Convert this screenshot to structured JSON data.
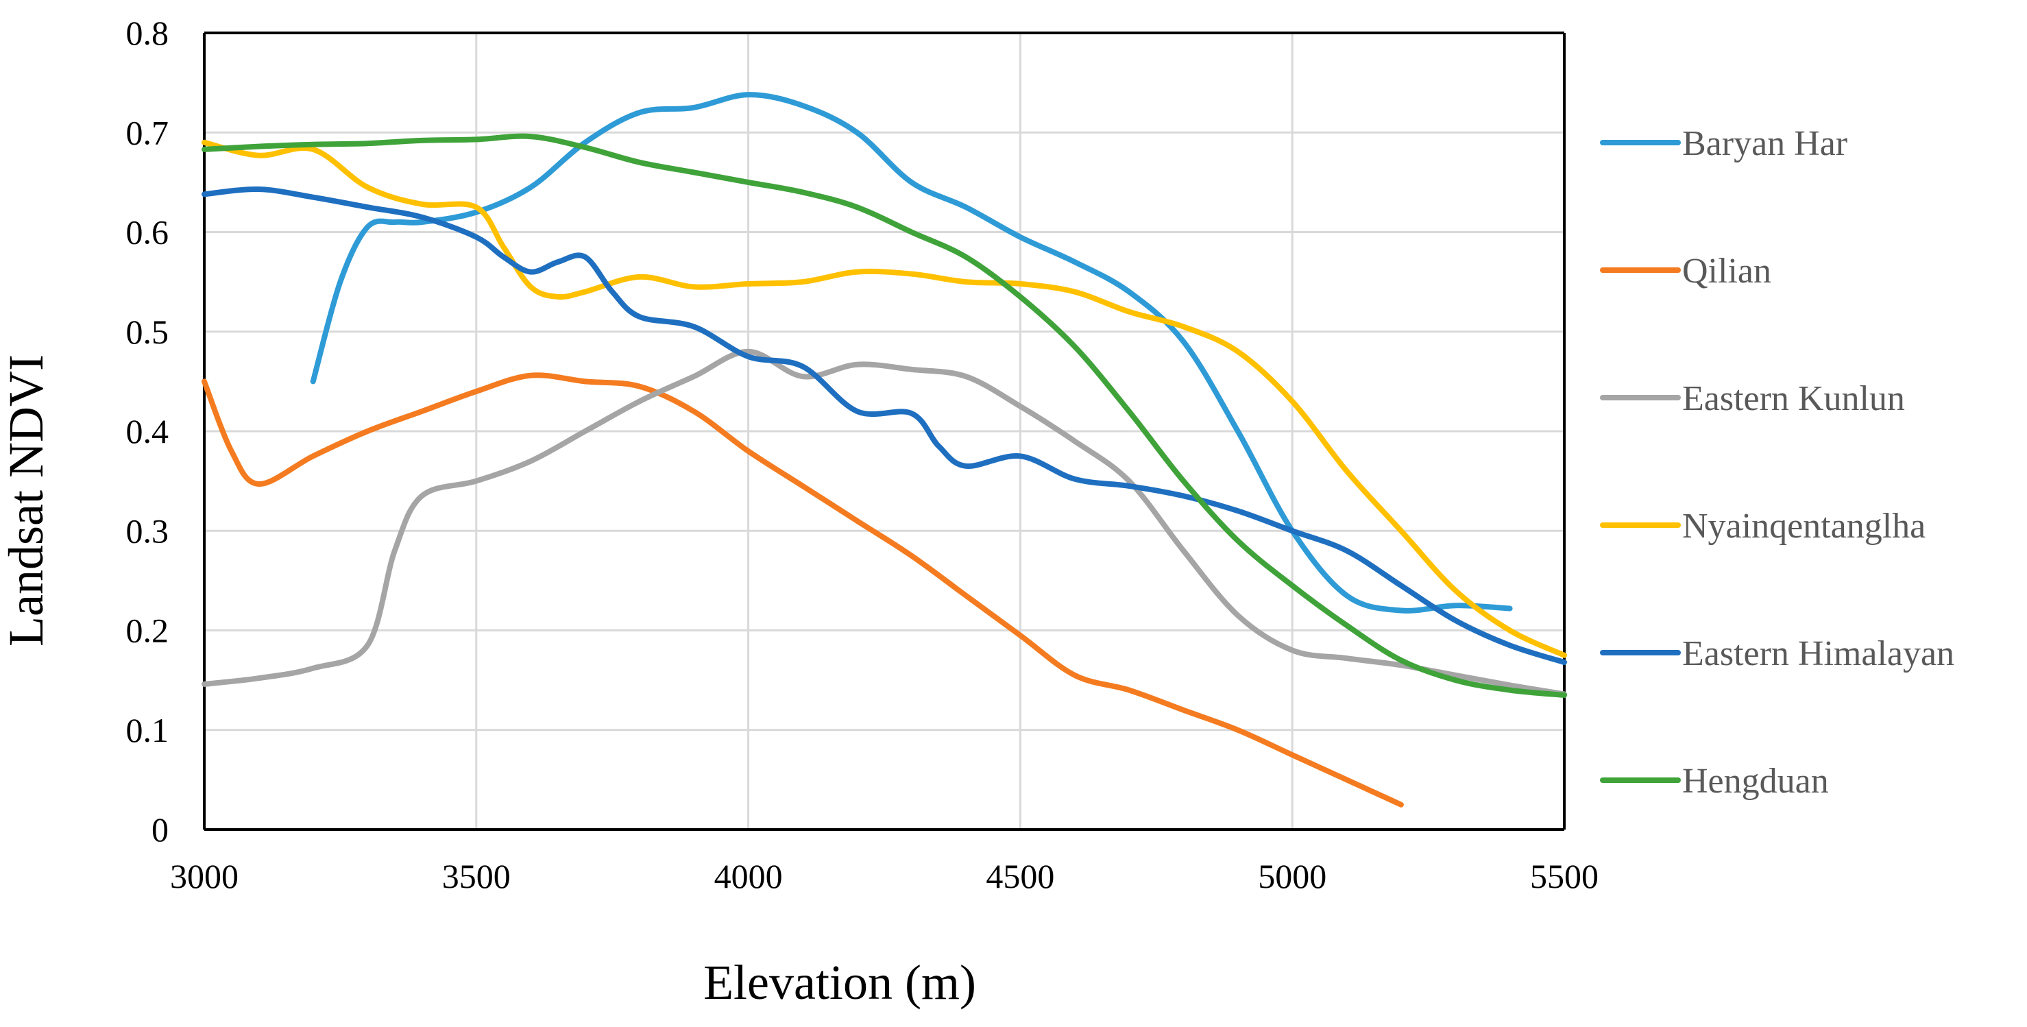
{
  "chart_data": {
    "type": "line",
    "title": "",
    "xlabel": "Elevation (m)",
    "ylabel": "Landsat NDVI",
    "xlim": [
      3000,
      5500
    ],
    "ylim": [
      0,
      0.8
    ],
    "xticks": [
      3000,
      3500,
      4000,
      4500,
      5000,
      5500
    ],
    "yticks": [
      0,
      0.1,
      0.2,
      0.3,
      0.4,
      0.5,
      0.6,
      0.7,
      0.8
    ],
    "xtick_labels": [
      "3000",
      "3500",
      "4000",
      "4500",
      "5000",
      "5500"
    ],
    "ytick_labels": [
      "0",
      "0.1",
      "0.2",
      "0.3",
      "0.4",
      "0.5",
      "0.6",
      "0.7",
      "0.8"
    ],
    "grid": true,
    "legend_position": "right",
    "series": [
      {
        "name": "Baryan Har",
        "color": "#2e9bd6",
        "x": [
          3200,
          3250,
          3300,
          3350,
          3400,
          3500,
          3600,
          3700,
          3800,
          3900,
          4000,
          4100,
          4200,
          4300,
          4400,
          4500,
          4600,
          4700,
          4800,
          4900,
          5000,
          5100,
          5200,
          5300,
          5400
        ],
        "y": [
          0.45,
          0.55,
          0.605,
          0.61,
          0.61,
          0.62,
          0.645,
          0.69,
          0.72,
          0.725,
          0.738,
          0.727,
          0.7,
          0.65,
          0.625,
          0.595,
          0.57,
          0.54,
          0.49,
          0.4,
          0.3,
          0.235,
          0.22,
          0.225,
          0.222
        ]
      },
      {
        "name": "Qilian",
        "color": "#f47b20",
        "x": [
          3000,
          3050,
          3100,
          3200,
          3300,
          3400,
          3500,
          3600,
          3700,
          3800,
          3900,
          4000,
          4100,
          4200,
          4300,
          4400,
          4500,
          4600,
          4700,
          4800,
          4900,
          5000,
          5100,
          5200
        ],
        "y": [
          0.45,
          0.38,
          0.347,
          0.375,
          0.4,
          0.42,
          0.44,
          0.456,
          0.45,
          0.445,
          0.42,
          0.38,
          0.345,
          0.31,
          0.275,
          0.235,
          0.195,
          0.155,
          0.14,
          0.12,
          0.1,
          0.075,
          0.05,
          0.025
        ]
      },
      {
        "name": "Eastern Kunlun",
        "color": "#a5a5a5",
        "x": [
          3000,
          3100,
          3200,
          3300,
          3350,
          3400,
          3500,
          3600,
          3700,
          3800,
          3900,
          4000,
          4100,
          4200,
          4300,
          4400,
          4500,
          4600,
          4700,
          4800,
          4900,
          5000,
          5100,
          5200,
          5300,
          5400,
          5500
        ],
        "y": [
          0.146,
          0.152,
          0.162,
          0.185,
          0.28,
          0.335,
          0.35,
          0.37,
          0.4,
          0.43,
          0.455,
          0.48,
          0.455,
          0.467,
          0.462,
          0.455,
          0.425,
          0.39,
          0.35,
          0.28,
          0.215,
          0.18,
          0.172,
          0.165,
          0.155,
          0.145,
          0.136
        ]
      },
      {
        "name": "Nyainqentanglha",
        "color": "#ffc000",
        "x": [
          3000,
          3100,
          3200,
          3300,
          3400,
          3500,
          3550,
          3600,
          3650,
          3700,
          3800,
          3900,
          4000,
          4100,
          4200,
          4300,
          4400,
          4500,
          4600,
          4700,
          4800,
          4900,
          5000,
          5100,
          5200,
          5300,
          5400,
          5500
        ],
        "y": [
          0.69,
          0.677,
          0.683,
          0.645,
          0.628,
          0.625,
          0.585,
          0.545,
          0.535,
          0.54,
          0.555,
          0.545,
          0.548,
          0.55,
          0.56,
          0.558,
          0.55,
          0.548,
          0.54,
          0.52,
          0.505,
          0.48,
          0.43,
          0.36,
          0.3,
          0.24,
          0.2,
          0.175
        ]
      },
      {
        "name": "Eastern Himalayan",
        "color": "#1f6fc0",
        "x": [
          3000,
          3100,
          3200,
          3300,
          3400,
          3500,
          3550,
          3600,
          3650,
          3700,
          3750,
          3800,
          3900,
          4000,
          4100,
          4200,
          4300,
          4350,
          4400,
          4500,
          4600,
          4700,
          4800,
          4900,
          5000,
          5100,
          5200,
          5300,
          5400,
          5500
        ],
        "y": [
          0.638,
          0.643,
          0.635,
          0.625,
          0.615,
          0.595,
          0.575,
          0.56,
          0.57,
          0.575,
          0.54,
          0.515,
          0.505,
          0.475,
          0.465,
          0.42,
          0.418,
          0.385,
          0.365,
          0.375,
          0.352,
          0.345,
          0.335,
          0.32,
          0.3,
          0.28,
          0.245,
          0.21,
          0.185,
          0.168
        ]
      },
      {
        "name": "Hengduan",
        "color": "#3fa33a",
        "x": [
          3000,
          3100,
          3200,
          3300,
          3400,
          3500,
          3600,
          3700,
          3800,
          3900,
          4000,
          4100,
          4200,
          4300,
          4400,
          4500,
          4600,
          4700,
          4800,
          4900,
          5000,
          5100,
          5200,
          5300,
          5400,
          5500
        ],
        "y": [
          0.683,
          0.686,
          0.688,
          0.689,
          0.692,
          0.693,
          0.696,
          0.685,
          0.67,
          0.66,
          0.65,
          0.64,
          0.625,
          0.6,
          0.575,
          0.535,
          0.485,
          0.42,
          0.35,
          0.29,
          0.245,
          0.205,
          0.17,
          0.15,
          0.14,
          0.135
        ]
      }
    ]
  }
}
